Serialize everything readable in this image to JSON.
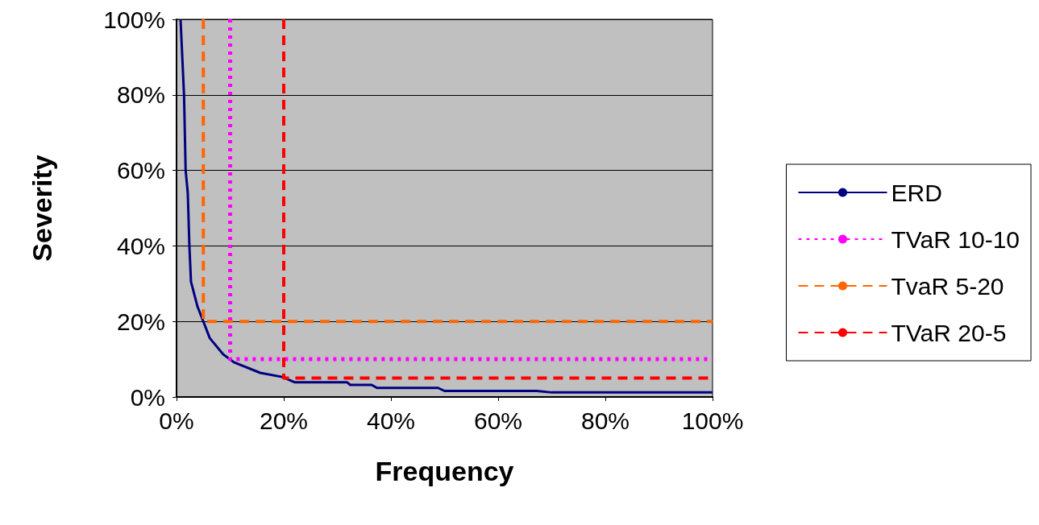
{
  "chart_data": {
    "type": "line",
    "xlabel": "Frequency",
    "ylabel": "Severity",
    "xlim": [
      0,
      100
    ],
    "xticks": [
      {
        "value": 0,
        "label": "0%"
      },
      {
        "value": 20,
        "label": "20%"
      },
      {
        "value": 40,
        "label": "40%"
      },
      {
        "value": 60,
        "label": "60%"
      },
      {
        "value": 80,
        "label": "80%"
      },
      {
        "value": 100,
        "label": "100%"
      }
    ],
    "ylim": [
      0,
      100
    ],
    "yticks": [
      {
        "value": 0,
        "label": "0%"
      },
      {
        "value": 20,
        "label": "20%"
      },
      {
        "value": 40,
        "label": "40%"
      },
      {
        "value": 60,
        "label": "60%"
      },
      {
        "value": 80,
        "label": "80%"
      },
      {
        "value": 100,
        "label": "100%"
      }
    ],
    "grid": "y",
    "legend": "right",
    "marker": "none",
    "series": [
      {
        "name": "ERD",
        "color": "#000080",
        "line_style": "solid",
        "x": [
          0.75,
          1.4,
          1.7,
          2.1,
          2.4,
          2.7,
          3.9,
          5,
          6.2,
          8.7,
          10.7,
          15.6,
          19.7,
          22,
          31.8,
          32.4,
          36.4,
          37.4,
          48.8,
          50,
          67.2,
          70,
          100
        ],
        "values": [
          100,
          80,
          60,
          54,
          40,
          30.5,
          24,
          20,
          15.6,
          11.3,
          9.2,
          6.4,
          5.3,
          3.9,
          3.9,
          3.2,
          3.2,
          2.4,
          2.4,
          1.6,
          1.6,
          1.2,
          1.2
        ]
      },
      {
        "name": "TVaR 10-10",
        "color": "#ff00ff",
        "line_style": "dotted",
        "x": [
          10,
          10,
          100
        ],
        "values": [
          100,
          10,
          10
        ]
      },
      {
        "name": "TvaR 5-20",
        "color": "#ff6600",
        "line_style": "dashed",
        "x": [
          5,
          5,
          100
        ],
        "values": [
          100,
          20,
          20
        ]
      },
      {
        "name": "TVaR 20-5",
        "color": "#ff0000",
        "line_style": "dashed",
        "x": [
          20,
          20,
          100
        ],
        "values": [
          100,
          5,
          5
        ]
      }
    ]
  }
}
